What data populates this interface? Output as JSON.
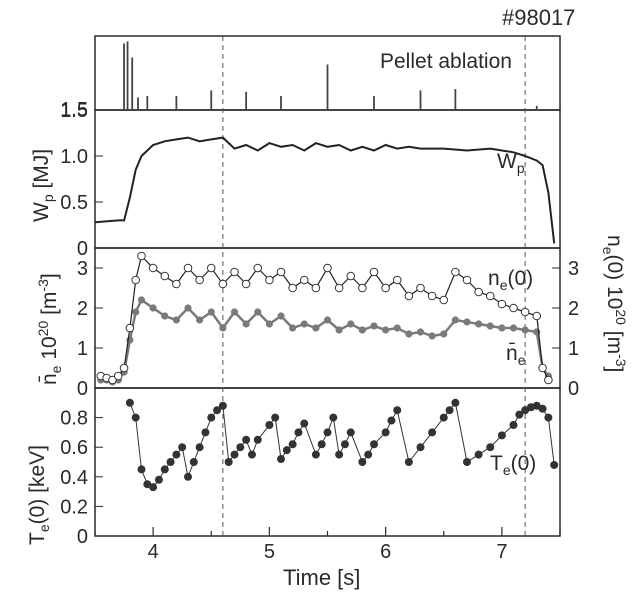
{
  "shot_label": "#98017",
  "x_axis": {
    "label": "Time   [s]",
    "range": [
      3.5,
      7.5
    ],
    "ticks": [
      "4",
      "5",
      "6",
      "7"
    ]
  },
  "vlines_s": [
    4.6,
    7.2
  ],
  "colors": {
    "axis": "#2a2a2a",
    "ne_line": "#222222",
    "ne_marker_fill": "#ffffff",
    "ne_bar": "#7a7a7a",
    "te": "#333333",
    "pellet": "#444444"
  },
  "chart_data": [
    {
      "type": "bar",
      "panel": "pellet",
      "annotation": "Pellet ablation",
      "y_tick_labels": [
        "1.5"
      ],
      "ylim": [
        0,
        1
      ],
      "x": [
        3.75,
        3.78,
        3.82,
        3.87,
        3.95,
        4.2,
        4.5,
        4.8,
        5.1,
        5.5,
        5.9,
        6.3,
        6.6,
        7.3
      ],
      "values": [
        0.95,
        0.98,
        0.75,
        0.18,
        0.2,
        0.2,
        0.28,
        0.26,
        0.2,
        0.65,
        0.2,
        0.28,
        0.3,
        0.06
      ]
    },
    {
      "type": "line",
      "panel": "Wp",
      "ylabel": "W_p [MJ]",
      "series_label": "W_p",
      "ylim": [
        0,
        1.5
      ],
      "y_tick_labels": [
        "0",
        "0.5",
        "1.0",
        "1.5"
      ],
      "x": [
        3.5,
        3.7,
        3.75,
        3.8,
        3.85,
        3.9,
        4.0,
        4.1,
        4.2,
        4.3,
        4.4,
        4.5,
        4.6,
        4.7,
        4.8,
        4.9,
        5.0,
        5.1,
        5.2,
        5.3,
        5.4,
        5.5,
        5.6,
        5.7,
        5.8,
        5.9,
        6.0,
        6.1,
        6.2,
        6.3,
        6.5,
        6.7,
        6.9,
        7.1,
        7.2,
        7.3,
        7.35,
        7.4,
        7.45
      ],
      "y": [
        0.28,
        0.3,
        0.3,
        0.55,
        0.85,
        1.0,
        1.12,
        1.16,
        1.18,
        1.2,
        1.16,
        1.18,
        1.2,
        1.08,
        1.12,
        1.06,
        1.14,
        1.1,
        1.12,
        1.06,
        1.14,
        1.1,
        1.12,
        1.06,
        1.1,
        1.06,
        1.12,
        1.08,
        1.1,
        1.08,
        1.08,
        1.06,
        1.08,
        1.04,
        1.0,
        0.95,
        0.9,
        0.6,
        0.05
      ]
    },
    {
      "type": "scatter",
      "panel": "density",
      "ylabel_left": "n̄_e 10^20 [m^-3]",
      "ylabel_right": "n_e(0) 10^20 [m^-3]",
      "ylim": [
        0,
        3.5
      ],
      "y_tick_labels": [
        "0",
        "1",
        "2",
        "3"
      ],
      "series": [
        {
          "name": "n_e(0)",
          "marker": "open-circle",
          "x": [
            3.55,
            3.6,
            3.65,
            3.7,
            3.75,
            3.8,
            3.85,
            3.9,
            4.0,
            4.1,
            4.2,
            4.3,
            4.4,
            4.5,
            4.6,
            4.7,
            4.8,
            4.9,
            5.0,
            5.1,
            5.2,
            5.3,
            5.4,
            5.5,
            5.6,
            5.7,
            5.8,
            5.9,
            6.0,
            6.1,
            6.2,
            6.3,
            6.4,
            6.5,
            6.6,
            6.7,
            6.8,
            6.9,
            7.0,
            7.1,
            7.2,
            7.3,
            7.35,
            7.4
          ],
          "y": [
            0.3,
            0.25,
            0.2,
            0.3,
            0.5,
            1.5,
            2.7,
            3.3,
            3.0,
            2.8,
            2.6,
            3.0,
            2.7,
            3.0,
            2.6,
            2.9,
            2.6,
            3.0,
            2.7,
            2.9,
            2.5,
            2.7,
            2.5,
            3.0,
            2.5,
            2.8,
            2.5,
            2.9,
            2.5,
            2.7,
            2.3,
            2.5,
            2.3,
            2.2,
            2.9,
            2.7,
            2.4,
            2.3,
            2.1,
            2.0,
            1.9,
            1.8,
            0.5,
            0.2
          ]
        },
        {
          "name": "n̄_e",
          "marker": "filled-circle",
          "x": [
            3.55,
            3.6,
            3.65,
            3.7,
            3.75,
            3.8,
            3.85,
            3.9,
            4.0,
            4.1,
            4.2,
            4.3,
            4.4,
            4.5,
            4.6,
            4.7,
            4.8,
            4.9,
            5.0,
            5.1,
            5.2,
            5.3,
            5.4,
            5.5,
            5.6,
            5.7,
            5.8,
            5.9,
            6.0,
            6.1,
            6.2,
            6.3,
            6.4,
            6.5,
            6.6,
            6.7,
            6.8,
            6.9,
            7.0,
            7.1,
            7.2,
            7.3,
            7.35,
            7.4
          ],
          "y": [
            0.2,
            0.2,
            0.15,
            0.2,
            0.4,
            1.2,
            1.9,
            2.2,
            2.0,
            1.8,
            1.7,
            2.0,
            1.7,
            1.9,
            1.5,
            1.9,
            1.6,
            1.9,
            1.6,
            1.8,
            1.5,
            1.6,
            1.5,
            1.7,
            1.45,
            1.6,
            1.45,
            1.55,
            1.45,
            1.5,
            1.35,
            1.4,
            1.3,
            1.35,
            1.7,
            1.65,
            1.6,
            1.55,
            1.5,
            1.5,
            1.45,
            1.4,
            0.5,
            0.3
          ]
        }
      ]
    },
    {
      "type": "scatter",
      "panel": "Te",
      "ylabel": "T_e(0) [keV]",
      "series_label": "T_e(0)",
      "ylim": [
        0,
        1.0
      ],
      "y_tick_labels": [
        "0",
        "0.2",
        "0.4",
        "0.6",
        "0.8"
      ],
      "x": [
        3.8,
        3.85,
        3.9,
        3.95,
        4.0,
        4.05,
        4.1,
        4.15,
        4.2,
        4.25,
        4.3,
        4.35,
        4.4,
        4.45,
        4.5,
        4.55,
        4.6,
        4.65,
        4.7,
        4.75,
        4.8,
        4.85,
        4.9,
        5.0,
        5.05,
        5.1,
        5.15,
        5.2,
        5.25,
        5.3,
        5.4,
        5.45,
        5.5,
        5.55,
        5.6,
        5.65,
        5.7,
        5.8,
        5.85,
        5.9,
        6.0,
        6.05,
        6.1,
        6.2,
        6.3,
        6.4,
        6.5,
        6.55,
        6.6,
        6.7,
        6.8,
        6.9,
        7.0,
        7.1,
        7.15,
        7.2,
        7.25,
        7.3,
        7.35,
        7.4,
        7.45
      ],
      "y": [
        0.9,
        0.8,
        0.45,
        0.35,
        0.33,
        0.38,
        0.45,
        0.5,
        0.55,
        0.6,
        0.4,
        0.5,
        0.6,
        0.7,
        0.8,
        0.85,
        0.88,
        0.5,
        0.55,
        0.6,
        0.65,
        0.55,
        0.65,
        0.75,
        0.8,
        0.52,
        0.58,
        0.62,
        0.7,
        0.76,
        0.55,
        0.62,
        0.7,
        0.8,
        0.55,
        0.62,
        0.7,
        0.5,
        0.55,
        0.62,
        0.7,
        0.78,
        0.85,
        0.5,
        0.6,
        0.7,
        0.8,
        0.85,
        0.9,
        0.5,
        0.55,
        0.6,
        0.68,
        0.75,
        0.82,
        0.85,
        0.87,
        0.88,
        0.86,
        0.8,
        0.48
      ]
    }
  ]
}
